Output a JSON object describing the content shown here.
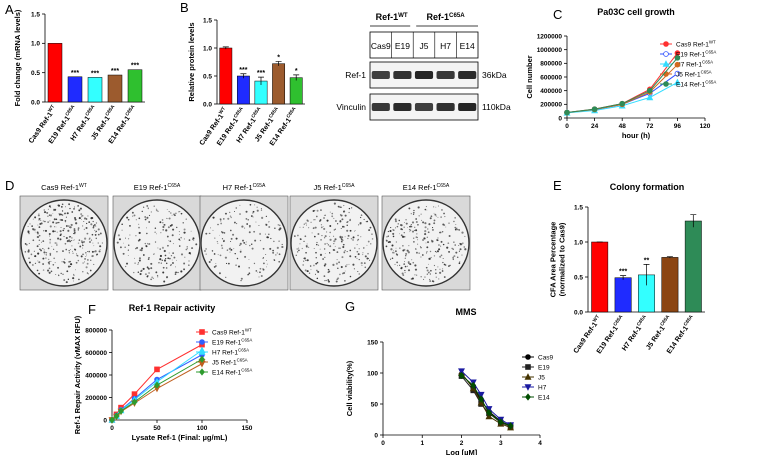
{
  "chart_data": [
    {
      "panel": "A",
      "type": "bar",
      "ylabel": [
        "Fold change (mRNA levels)"
      ],
      "categories": [
        "Cas9 Ref-1",
        "E19 Ref-1",
        "H7 Ref-1",
        "J5 Ref-1",
        "E14 Ref-1"
      ],
      "category_superscripts": [
        "WT",
        "C65A",
        "C65A",
        "C65A",
        "C65A"
      ],
      "values": [
        1.0,
        0.43,
        0.42,
        0.46,
        0.55
      ],
      "colors": [
        "#ff0000",
        "#1f2bff",
        "#33ffff",
        "#9c5b2e",
        "#2fc02f"
      ],
      "significance": [
        null,
        "***",
        "***",
        "***",
        "***"
      ],
      "ylim": [
        0,
        1.5
      ],
      "yticks": [
        {
          "value": 0,
          "label": "0.0"
        },
        {
          "value": 0.5,
          "label": "0.5"
        },
        {
          "value": 1,
          "label": "1.0"
        },
        {
          "value": 1.5,
          "label": "1.5"
        }
      ]
    },
    {
      "panel": "B",
      "type": "bar",
      "ylabel": [
        "Relative protein levels"
      ],
      "categories": [
        "Cas9 Ref-1",
        "E19 Ref-1",
        "H7 Ref-1",
        "J5 Ref-1",
        "E14 Ref-1"
      ],
      "category_superscripts": [
        "WT",
        "C65A",
        "C65A",
        "C65A",
        "C65A"
      ],
      "values": [
        1.0,
        0.5,
        0.41,
        0.72,
        0.47
      ],
      "errors": [
        0.02,
        0.04,
        0.07,
        0.04,
        0.05
      ],
      "colors": [
        "#ff0000",
        "#1f2bff",
        "#33ffff",
        "#9c5b2e",
        "#2fc02f"
      ],
      "significance": [
        null,
        "***",
        "***",
        "*",
        "*"
      ],
      "ylim": [
        0,
        1.5
      ],
      "yticks": [
        {
          "value": 0,
          "label": "0.0"
        },
        {
          "value": 0.5,
          "label": "0.5"
        },
        {
          "value": 1,
          "label": "1.0"
        },
        {
          "value": 1.5,
          "label": "1.5"
        }
      ]
    },
    {
      "panel": "C",
      "type": "line",
      "title": "Pa03C cell growth",
      "xlabel": "hour (h)",
      "ylabel": [
        "Cell number"
      ],
      "x": [
        0,
        24,
        48,
        72,
        96
      ],
      "series": [
        {
          "name": "Cas9 Ref-1",
          "sup": "WT",
          "color": "#ff3030",
          "marker": "circle",
          "values": [
            80000,
            130000,
            210000,
            420000,
            950000
          ]
        },
        {
          "name": "E19 Ref-1",
          "sup": "C65A",
          "color": "#3050ff",
          "marker": "open-circle",
          "values": [
            80000,
            120000,
            200000,
            360000,
            650000
          ]
        },
        {
          "name": "H7 Ref-1",
          "sup": "C65A",
          "color": "#33ddff",
          "marker": "triangle",
          "values": [
            75000,
            110000,
            180000,
            300000,
            520000
          ]
        },
        {
          "name": "J5 Ref-1",
          "sup": "C65A",
          "color": "#d2691e",
          "marker": "circle",
          "values": [
            80000,
            125000,
            200000,
            380000,
            780000
          ]
        },
        {
          "name": "E14 Ref-1",
          "sup": "C65A",
          "color": "#2e8b57",
          "marker": "circle",
          "values": [
            80000,
            130000,
            210000,
            400000,
            880000
          ]
        }
      ],
      "xlim": [
        0,
        120
      ],
      "xticks": [
        0,
        24,
        48,
        72,
        96,
        120
      ],
      "ylim": [
        0,
        1200000
      ],
      "yticks": [
        0,
        200000,
        400000,
        600000,
        800000,
        1000000,
        1200000
      ]
    },
    {
      "panel": "E",
      "type": "bar",
      "title": "Colony formation",
      "ylabel": [
        "CFA Area Percentage",
        "(normalized to Cas9)"
      ],
      "categories": [
        "Cas9 Ref-1",
        "E19 Ref-1",
        "H7 Ref-1",
        "J5 Ref-1",
        "E14 Ref-1"
      ],
      "category_superscripts": [
        "WT",
        "C65A",
        "C65A",
        "C65A",
        "C65A"
      ],
      "values": [
        1.0,
        0.49,
        0.53,
        0.78,
        1.3
      ],
      "errors": [
        0,
        0.03,
        0.15,
        0.01,
        0.09
      ],
      "colors": [
        "#ff0000",
        "#1f2bff",
        "#33ffff",
        "#8b4513",
        "#2e8b57"
      ],
      "significance": [
        null,
        "***",
        "**",
        null,
        null
      ],
      "ylim": [
        0,
        1.5
      ],
      "yticks": [
        {
          "value": 0,
          "label": "0.0"
        },
        {
          "value": 0.5,
          "label": "0.5"
        },
        {
          "value": 1,
          "label": "1.0"
        },
        {
          "value": 1.5,
          "label": "1.5"
        }
      ]
    },
    {
      "panel": "F",
      "type": "line",
      "title": "Ref-1 Repair activity",
      "xlabel": "Lysate Ref-1 (Final: µg/mL)",
      "ylabel": [
        "Ref-1 Repair Activity  (vMAX RFU)"
      ],
      "x": [
        0,
        5,
        10,
        25,
        50,
        100
      ],
      "series": [
        {
          "name": "Cas9 Ref-1",
          "sup": "WT",
          "color": "#ff3030",
          "marker": "square",
          "values": [
            0,
            50000,
            110000,
            230000,
            450000,
            670000
          ]
        },
        {
          "name": "E19 Ref-1",
          "sup": "C65A",
          "color": "#3060ff",
          "marker": "circle",
          "values": [
            0,
            40000,
            90000,
            190000,
            360000,
            580000
          ]
        },
        {
          "name": "H7 Ref-1",
          "sup": "C65A",
          "color": "#33ddff",
          "marker": "triangle",
          "values": [
            0,
            35000,
            85000,
            180000,
            340000,
            620000
          ]
        },
        {
          "name": "J5 Ref-1",
          "sup": "C65A",
          "color": "#c06020",
          "marker": "down-triangle",
          "values": [
            0,
            30000,
            75000,
            150000,
            280000,
            500000
          ]
        },
        {
          "name": "E14 Ref-1",
          "sup": "C65A",
          "color": "#2e9b2e",
          "marker": "diamond",
          "values": [
            0,
            35000,
            80000,
            160000,
            310000,
            540000
          ]
        }
      ],
      "xlim": [
        0,
        150
      ],
      "xticks": [
        0,
        50,
        100,
        150
      ],
      "ylim": [
        0,
        800000
      ],
      "yticks": [
        0,
        200000,
        400000,
        600000,
        800000
      ]
    },
    {
      "panel": "G",
      "type": "line",
      "title": "MMS",
      "xlabel": "Log [µM]",
      "ylabel": [
        "Cell viability(%)"
      ],
      "x": [
        2.0,
        2.3,
        2.5,
        2.7,
        3.0,
        3.25
      ],
      "series": [
        {
          "name": "Cas9",
          "color": "#000000",
          "marker": "circle",
          "values": [
            98,
            78,
            55,
            38,
            22,
            15
          ]
        },
        {
          "name": "E19",
          "color": "#222222",
          "marker": "square",
          "values": [
            95,
            72,
            50,
            35,
            20,
            14
          ]
        },
        {
          "name": "J5",
          "color": "#443300",
          "marker": "triangle",
          "values": [
            100,
            75,
            52,
            30,
            18,
            12
          ]
        },
        {
          "name": "H7",
          "color": "#1a1aa0",
          "marker": "down-triangle",
          "values": [
            103,
            85,
            65,
            42,
            25,
            16
          ]
        },
        {
          "name": "E14",
          "color": "#004d00",
          "marker": "diamond",
          "values": [
            96,
            80,
            58,
            36,
            21,
            15
          ]
        }
      ],
      "xlim": [
        0,
        4
      ],
      "xticks": [
        0,
        1,
        2,
        3,
        4
      ],
      "ylim": [
        0,
        150
      ],
      "yticks": [
        0,
        50,
        100,
        150
      ]
    }
  ],
  "blot": {
    "groups": [
      {
        "name": "Ref-1",
        "sup": "WT"
      },
      {
        "name": "Ref-1",
        "sup": "C65A"
      }
    ],
    "lanes": [
      "Cas9",
      "E19",
      "J5",
      "H7",
      "E14"
    ],
    "rows": [
      {
        "name": "Ref-1",
        "size": "36kDa"
      },
      {
        "name": "Vinculin",
        "size": "110kDa"
      }
    ]
  },
  "colony_images": {
    "panel": "D",
    "labels": [
      "Cas9 Ref-1",
      "E19 Ref-1",
      "H7 Ref-1",
      "J5 Ref-1",
      "E14 Ref-1"
    ],
    "superscripts": [
      "WT",
      "C65A",
      "C65A",
      "C65A",
      "C65A"
    ]
  }
}
